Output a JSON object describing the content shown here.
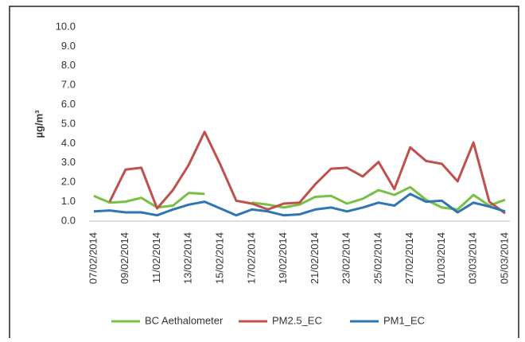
{
  "chart_data": {
    "type": "line",
    "ylabel": "µg/m³",
    "categories": [
      "07/02/2014",
      null,
      "09/02/2014",
      null,
      "11/02/2014",
      null,
      "13/02/2014",
      null,
      "15/02/2014",
      null,
      "17/02/2014",
      null,
      "19/02/2014",
      null,
      "21/02/2014",
      null,
      "23/02/2014",
      null,
      "25/02/2014",
      null,
      "27/02/2014",
      null,
      "01/03/2014",
      null,
      "03/03/2014",
      null,
      "05/03/2014"
    ],
    "series": [
      {
        "name": "BC Aethalometer",
        "color": "#77c043",
        "values": [
          1.3,
          0.95,
          1.0,
          1.2,
          0.7,
          0.8,
          1.45,
          1.4,
          null,
          null,
          0.95,
          0.85,
          0.7,
          0.85,
          1.25,
          1.3,
          0.9,
          1.15,
          1.6,
          1.35,
          1.75,
          1.1,
          0.7,
          0.6,
          1.35,
          0.8,
          1.1
        ]
      },
      {
        "name": "PM2.5_EC",
        "color": "#c0504d",
        "values": [
          null,
          1.0,
          2.65,
          2.75,
          0.65,
          1.6,
          2.9,
          4.6,
          2.9,
          1.05,
          0.9,
          0.6,
          0.9,
          0.95,
          1.9,
          2.7,
          2.75,
          2.3,
          3.05,
          1.65,
          3.8,
          3.1,
          2.95,
          2.05,
          4.05,
          1.0,
          0.4
        ]
      },
      {
        "name": "PM1_EC",
        "color": "#2e75b6",
        "values": [
          0.5,
          0.55,
          0.45,
          0.45,
          0.3,
          0.6,
          0.85,
          1.0,
          0.65,
          0.3,
          0.6,
          0.5,
          0.3,
          0.35,
          0.6,
          0.7,
          0.5,
          0.7,
          0.95,
          0.8,
          1.4,
          1.0,
          1.05,
          0.45,
          0.95,
          0.75,
          0.5
        ]
      }
    ],
    "ylim": [
      0,
      10
    ],
    "yticks": [
      {
        "value": 0,
        "label": "0.0"
      },
      {
        "value": 1,
        "label": "1.0"
      },
      {
        "value": 2,
        "label": "2.0"
      },
      {
        "value": 3,
        "label": "3.0"
      },
      {
        "value": 4,
        "label": "4.0"
      },
      {
        "value": 5,
        "label": "5.0"
      },
      {
        "value": 6,
        "label": "6.0"
      },
      {
        "value": 7,
        "label": "7.0"
      },
      {
        "value": 8,
        "label": "8.0"
      },
      {
        "value": 9,
        "label": "9.0"
      },
      {
        "value": 10,
        "label": "10.0"
      }
    ],
    "legend": "bottom"
  }
}
